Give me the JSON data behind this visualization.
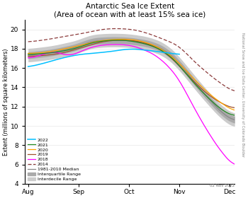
{
  "title": "Antarctic Sea Ice Extent\n(Area of ocean with at least 15% sea ice)",
  "ylabel": "Extent (millions of square kilometers)",
  "side_label": "National Snow and Ice Data Center, University of Colorado Boulder",
  "date_label": "02 Nov 2022",
  "ylim": [
    4,
    21
  ],
  "yticks": [
    4,
    6,
    8,
    10,
    12,
    14,
    16,
    18,
    20
  ],
  "colors": {
    "2022": "#00BFFF",
    "2021": "#228B22",
    "2020": "#FFA500",
    "2019": "#A0522D",
    "2018": "#FF00FF",
    "2014": "#8B3A3A",
    "median": "#888888",
    "interquartile": "#AAAAAA",
    "interdecile": "#CCCCCC"
  },
  "month_labels": [
    "Aug",
    "Sep",
    "Oct",
    "Nov",
    "Dec"
  ],
  "month_positions": [
    0,
    31,
    62,
    93,
    124
  ]
}
